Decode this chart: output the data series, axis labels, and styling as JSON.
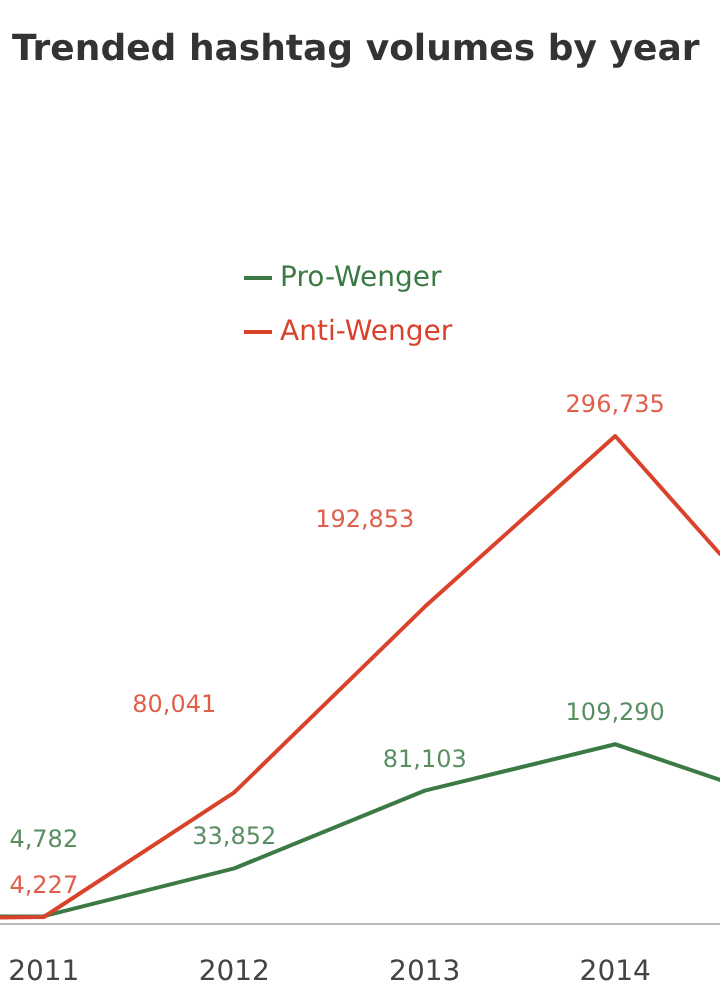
{
  "chart_data": {
    "type": "line",
    "title": "Trended hashtag volumes by year",
    "x": [
      2010.77,
      2011,
      2012,
      2013,
      2014,
      2014.55
    ],
    "xlim": [
      2010.77,
      2014.55
    ],
    "xticks": [
      2011,
      2012,
      2013,
      2014
    ],
    "tick_labels": "x",
    "legend": "top",
    "marker": "none",
    "line_style": "solid",
    "series": [
      {
        "name": "Pro-Wenger",
        "color": "#3b7a45",
        "values": [
          4500,
          4782,
          33852,
          81103,
          109290,
          87600
        ],
        "value_labels": [
          null,
          "4,782",
          "33,852",
          "81,103",
          "109,290",
          null
        ]
      },
      {
        "name": "Anti-Wenger",
        "color": "#d9432c",
        "values": [
          4000,
          4227,
          80041,
          192853,
          296735,
          225000
        ],
        "value_labels": [
          null,
          "4,227",
          "80,041",
          "192,853",
          "296,735",
          null
        ]
      }
    ]
  }
}
